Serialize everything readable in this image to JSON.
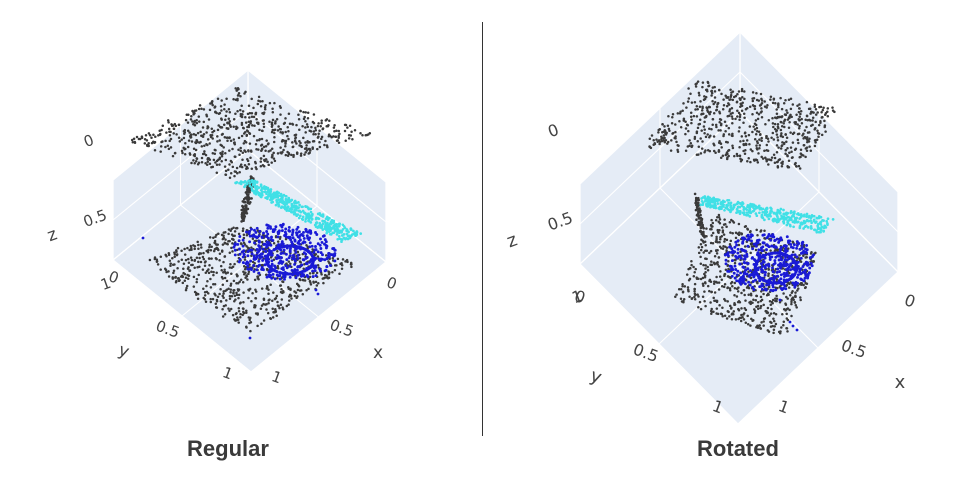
{
  "chart_data": [
    {
      "type": "scatter3d",
      "title": "Regular",
      "axes": {
        "x": {
          "label": "x",
          "ticks": [
            "0",
            "0.5",
            "1"
          ],
          "range": [
            0,
            1
          ]
        },
        "y": {
          "label": "y",
          "ticks": [
            "0",
            "0.5",
            "1"
          ],
          "range": [
            0,
            1
          ]
        },
        "z": {
          "label": "z",
          "ticks": [
            "0",
            "0.5",
            "1"
          ],
          "range": [
            0,
            1
          ]
        }
      },
      "background": "#e5ecf6",
      "grid": true,
      "series": [
        {
          "color": "#3a3a3a",
          "shape": "top plane",
          "z": 1.0
        },
        {
          "color": "#3a3a3a",
          "shape": "bottom plane",
          "z": 0.0
        },
        {
          "color": "#3a3a3a",
          "shape": "vertical connector",
          "z": [
            0.0,
            1.0
          ]
        },
        {
          "color": "#40e0e6",
          "shape": "slanted strip",
          "z": [
            0.35,
            0.6
          ]
        },
        {
          "color": "#1a1ad6",
          "shape": "cluster",
          "z": [
            0.1,
            0.45
          ]
        }
      ]
    },
    {
      "type": "scatter3d",
      "title": "Rotated",
      "axes": {
        "x": {
          "label": "x",
          "ticks": [
            "0",
            "0.5",
            "1"
          ],
          "range": [
            0,
            1
          ]
        },
        "y": {
          "label": "y",
          "ticks": [
            "0",
            "0.5",
            "1"
          ],
          "range": [
            0,
            1
          ]
        },
        "z": {
          "label": "z",
          "ticks": [
            "0",
            "0.5",
            "1"
          ],
          "range": [
            0,
            1
          ]
        }
      },
      "background": "#e5ecf6",
      "grid": true,
      "series": [
        {
          "color": "#3a3a3a",
          "shape": "top plane (rotated)",
          "z": 1.0
        },
        {
          "color": "#3a3a3a",
          "shape": "bottom plane (rotated)",
          "z": 0.0
        },
        {
          "color": "#3a3a3a",
          "shape": "vertical connector",
          "z": [
            0.0,
            0.6
          ]
        },
        {
          "color": "#40e0e6",
          "shape": "slanted strip",
          "z": [
            0.45,
            0.6
          ]
        },
        {
          "color": "#1a1ad6",
          "shape": "cluster",
          "z": [
            0.1,
            0.5
          ]
        }
      ]
    }
  ]
}
